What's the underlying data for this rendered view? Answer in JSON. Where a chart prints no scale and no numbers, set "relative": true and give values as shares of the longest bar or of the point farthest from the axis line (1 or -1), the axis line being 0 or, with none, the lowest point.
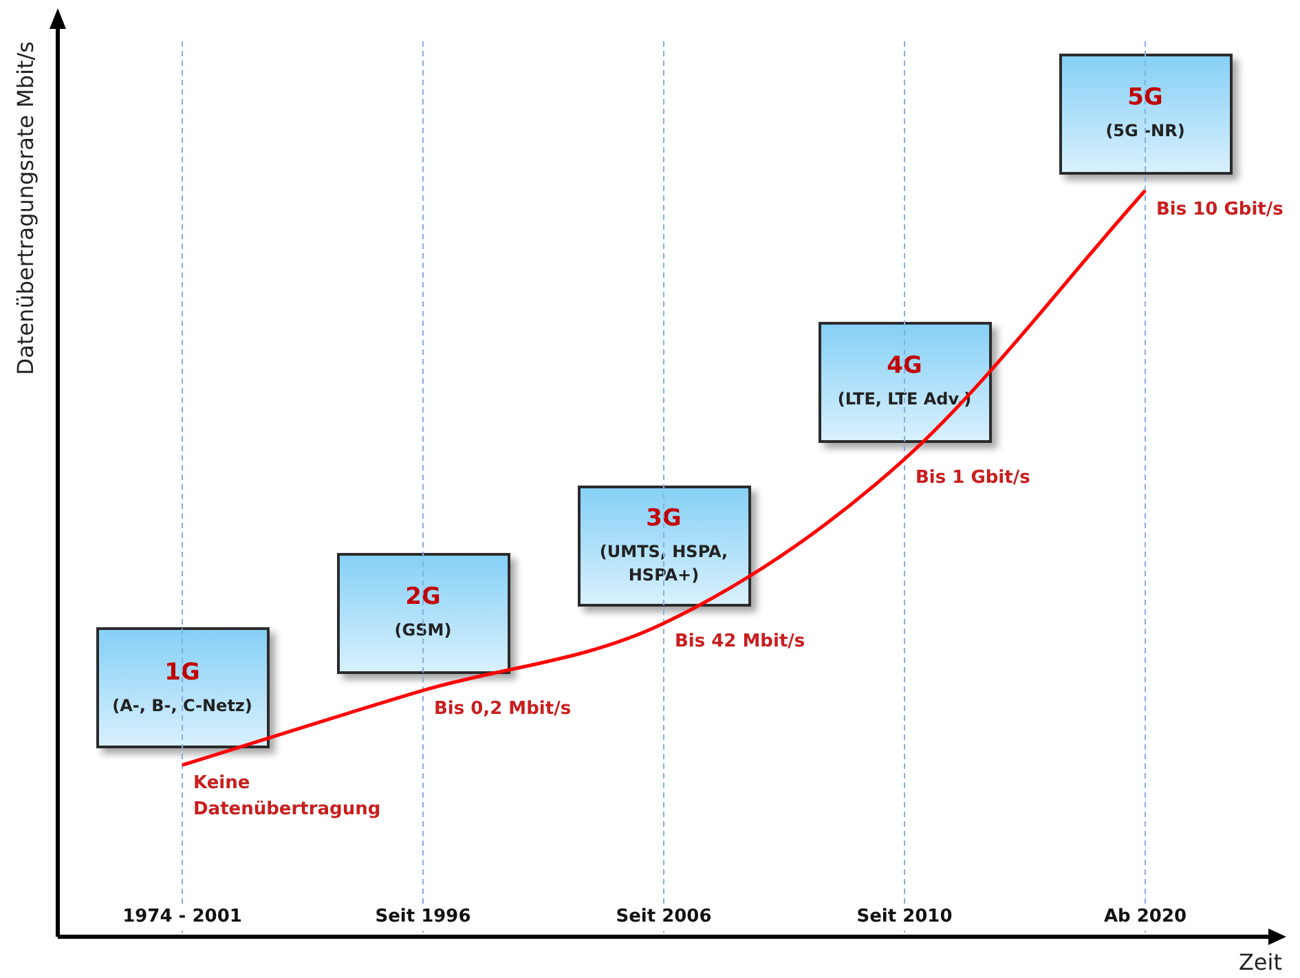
{
  "chart_data": {
    "type": "line",
    "relative": true,
    "xlabel": "Zeit",
    "ylabel": "Datenübertragungsrate Mbit/s",
    "categories": [
      "1974 - 2001",
      "Seit 1996",
      "Seit 2006",
      "Seit 2010",
      "Ab 2020"
    ],
    "series": [
      {
        "color": "#ff0000",
        "values": [
          0.23,
          0.33,
          0.42,
          0.64,
          1
        ]
      }
    ],
    "marker": "none",
    "line_style": "solid",
    "grid": "x",
    "legend": false,
    "annotations": [
      "1G",
      "(A-, B-, C-Netz)",
      "Keine Datenübertragung",
      "2G",
      "(GSM)",
      "Bis 0,2 Mbit/s",
      "3G",
      "(UMTS, HSPA, HSPA+)",
      "Bis 42 Mbit/s",
      "4G",
      "(LTE, LTE Adv.)",
      "Bis 1 Gbit/s",
      "5G",
      "(5G -NR)",
      "Bis 10 Gbit/s"
    ]
  }
}
